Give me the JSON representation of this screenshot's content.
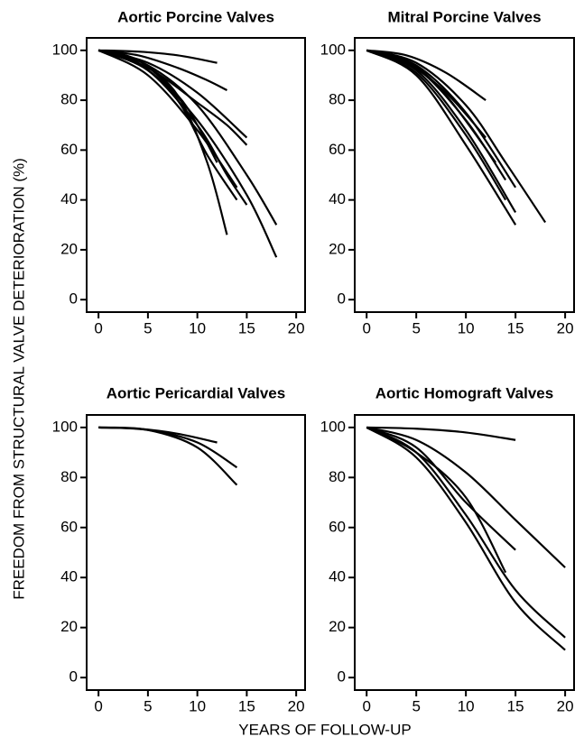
{
  "xlabel": "YEARS OF FOLLOW-UP",
  "ylabel": "FREEDOM FROM STRUCTURAL VALVE DETERIORATION (%)",
  "chart_data": [
    {
      "type": "line",
      "title": "Aortic Porcine Valves",
      "color": "#000000",
      "xlim": [
        -1.2,
        20.9
      ],
      "ylim": [
        -5,
        105
      ],
      "xticks": [
        0,
        5,
        10,
        15,
        20
      ],
      "yticks": [
        0,
        20,
        40,
        60,
        80,
        100
      ],
      "series": [
        {
          "x": [
            0,
            4,
            8,
            12
          ],
          "values": [
            100,
            99.5,
            98,
            95
          ]
        },
        {
          "x": [
            0,
            4,
            8,
            11,
            13
          ],
          "values": [
            100,
            98,
            93,
            88,
            84
          ]
        },
        {
          "x": [
            0,
            5,
            10,
            15
          ],
          "values": [
            100,
            95,
            83,
            65
          ]
        },
        {
          "x": [
            0,
            5,
            10,
            13,
            15
          ],
          "values": [
            100,
            93,
            79,
            70,
            62
          ]
        },
        {
          "x": [
            0,
            5,
            10,
            15,
            18
          ],
          "values": [
            100,
            94,
            78,
            50,
            30
          ]
        },
        {
          "x": [
            0,
            5,
            10,
            15,
            18
          ],
          "values": [
            100,
            92,
            72,
            42,
            17
          ]
        },
        {
          "x": [
            0,
            4,
            8,
            11,
            13
          ],
          "values": [
            100,
            96,
            82,
            55,
            26
          ]
        },
        {
          "x": [
            0,
            5,
            10,
            13,
            15
          ],
          "values": [
            100,
            92,
            70,
            50,
            38
          ]
        },
        {
          "x": [
            0,
            5,
            10,
            14
          ],
          "values": [
            100,
            90,
            68,
            45
          ]
        },
        {
          "x": [
            0,
            4,
            8,
            10,
            12
          ],
          "values": [
            100,
            96,
            82,
            70,
            55
          ]
        },
        {
          "x": [
            0,
            4,
            8,
            11,
            14
          ],
          "values": [
            100,
            95,
            80,
            58,
            40
          ]
        }
      ]
    },
    {
      "type": "line",
      "title": "Mitral Porcine Valves",
      "color": "#000000",
      "xlim": [
        -1.2,
        20.9
      ],
      "ylim": [
        -5,
        105
      ],
      "xticks": [
        0,
        5,
        10,
        15,
        20
      ],
      "yticks": [
        0,
        20,
        40,
        60,
        80,
        100
      ],
      "series": [
        {
          "x": [
            0,
            4,
            8,
            12
          ],
          "values": [
            100,
            98,
            91,
            80
          ]
        },
        {
          "x": [
            0,
            5,
            10,
            15
          ],
          "values": [
            100,
            94,
            75,
            45
          ]
        },
        {
          "x": [
            0,
            5,
            10,
            15
          ],
          "values": [
            100,
            92,
            68,
            35
          ]
        },
        {
          "x": [
            0,
            5,
            10,
            15
          ],
          "values": [
            100,
            90,
            62,
            30
          ]
        },
        {
          "x": [
            0,
            5,
            10,
            14,
            18
          ],
          "values": [
            100,
            95,
            78,
            55,
            31
          ]
        },
        {
          "x": [
            0,
            5,
            10,
            14
          ],
          "values": [
            100,
            93,
            72,
            48
          ]
        },
        {
          "x": [
            0,
            4,
            8,
            13
          ],
          "values": [
            100,
            96,
            82,
            55
          ]
        },
        {
          "x": [
            0,
            5,
            10,
            14
          ],
          "values": [
            100,
            91,
            66,
            40
          ]
        },
        {
          "x": [
            0,
            4,
            8,
            12
          ],
          "values": [
            100,
            95,
            83,
            65
          ]
        }
      ]
    },
    {
      "type": "line",
      "title": "Aortic Pericardial Valves",
      "color": "#000000",
      "xlim": [
        -1.2,
        20.9
      ],
      "ylim": [
        -5,
        105
      ],
      "xticks": [
        0,
        5,
        10,
        15,
        20
      ],
      "yticks": [
        0,
        20,
        40,
        60,
        80,
        100
      ],
      "series": [
        {
          "x": [
            0,
            4,
            8,
            12
          ],
          "values": [
            100,
            99.5,
            97.5,
            94
          ]
        },
        {
          "x": [
            0,
            5,
            10,
            14
          ],
          "values": [
            100,
            99,
            94,
            84
          ]
        },
        {
          "x": [
            0,
            5,
            10,
            14
          ],
          "values": [
            100,
            99,
            92,
            77
          ]
        }
      ]
    },
    {
      "type": "line",
      "title": "Aortic Homograft Valves",
      "color": "#000000",
      "xlim": [
        -1.2,
        20.9
      ],
      "ylim": [
        -5,
        105
      ],
      "xticks": [
        0,
        5,
        10,
        15,
        20
      ],
      "yticks": [
        0,
        20,
        40,
        60,
        80,
        100
      ],
      "series": [
        {
          "x": [
            0,
            5,
            10,
            15
          ],
          "values": [
            100,
            99.5,
            98,
            95
          ]
        },
        {
          "x": [
            0,
            5,
            10,
            15,
            20
          ],
          "values": [
            100,
            95,
            82,
            63,
            44
          ]
        },
        {
          "x": [
            0,
            5,
            10,
            15,
            20
          ],
          "values": [
            100,
            90,
            65,
            35,
            16
          ]
        },
        {
          "x": [
            0,
            5,
            10,
            15,
            20
          ],
          "values": [
            100,
            88,
            62,
            30,
            11
          ]
        },
        {
          "x": [
            0,
            5,
            10,
            15
          ],
          "values": [
            100,
            92,
            70,
            51
          ]
        },
        {
          "x": [
            0,
            5,
            10,
            14
          ],
          "values": [
            100,
            90,
            72,
            42
          ]
        }
      ]
    }
  ]
}
